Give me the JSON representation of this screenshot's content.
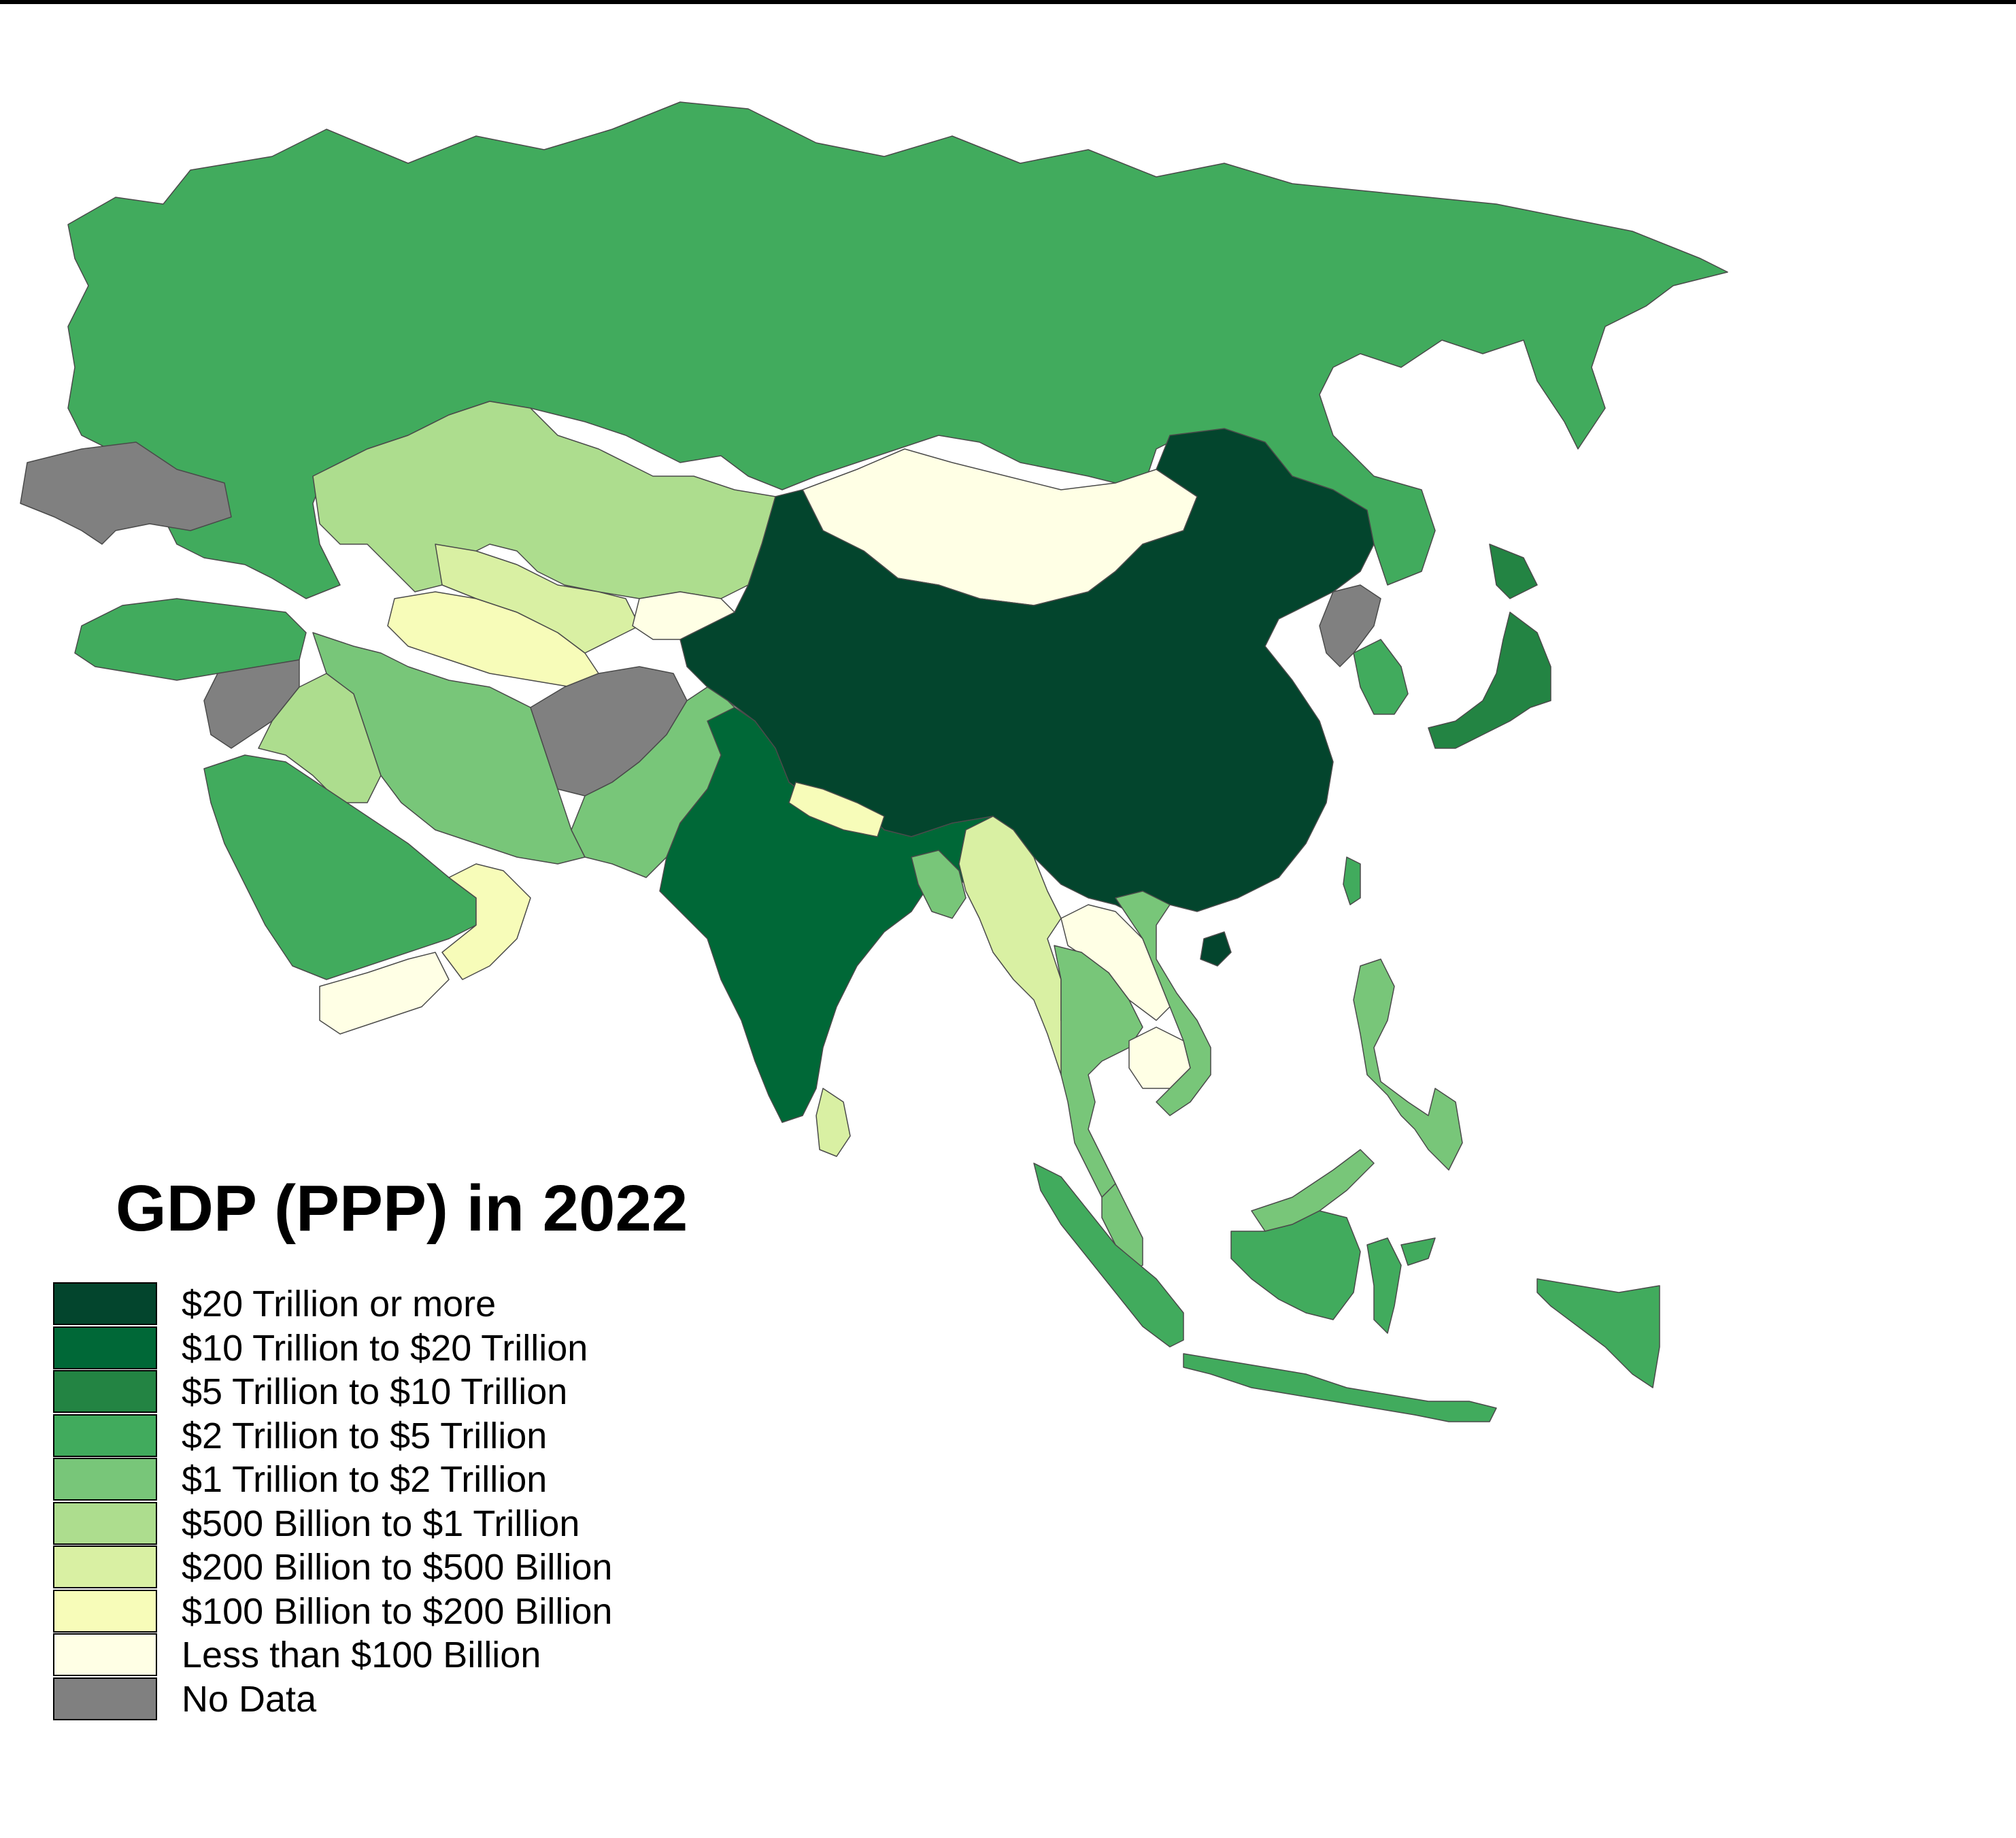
{
  "title": "GDP (PPP) in 2022",
  "legend": [
    {
      "label": "$20 Trillion or more",
      "color": "#03452d"
    },
    {
      "label": "$10 Trillion to $20 Trillion",
      "color": "#006837"
    },
    {
      "label": "$5 Trillion to $10 Trillion",
      "color": "#238443"
    },
    {
      "label": "$2 Trillion to $5 Trillion",
      "color": "#41ab5d"
    },
    {
      "label": "$1 Trillion to $2 Trillion",
      "color": "#78c679"
    },
    {
      "label": "$500 Billion to $1 Trillion",
      "color": "#addd8e"
    },
    {
      "label": "$200 Billion to $500 Billion",
      "color": "#d9f0a3"
    },
    {
      "label": "$100 Billion to $200 Billion",
      "color": "#f7fcb9"
    },
    {
      "label": "Less than $100 Billion",
      "color": "#ffffe5"
    },
    {
      "label": "No Data",
      "color": "#808080"
    }
  ],
  "regions": [
    {
      "name": "china",
      "class": "$20 Trillion or more"
    },
    {
      "name": "india",
      "class": "$10 Trillion to $20 Trillion"
    },
    {
      "name": "japan",
      "class": "$5 Trillion to $10 Trillion"
    },
    {
      "name": "russia",
      "class": "$2 Trillion to $5 Trillion"
    },
    {
      "name": "indonesia",
      "class": "$2 Trillion to $5 Trillion"
    },
    {
      "name": "saudi-arabia",
      "class": "$2 Trillion to $5 Trillion"
    },
    {
      "name": "turkey",
      "class": "$2 Trillion to $5 Trillion"
    },
    {
      "name": "south-korea",
      "class": "$2 Trillion to $5 Trillion"
    },
    {
      "name": "iran",
      "class": "$1 Trillion to $2 Trillion"
    },
    {
      "name": "pakistan",
      "class": "$1 Trillion to $2 Trillion"
    },
    {
      "name": "thailand",
      "class": "$1 Trillion to $2 Trillion"
    },
    {
      "name": "vietnam",
      "class": "$1 Trillion to $2 Trillion"
    },
    {
      "name": "bangladesh",
      "class": "$1 Trillion to $2 Trillion"
    },
    {
      "name": "malaysia",
      "class": "$1 Trillion to $2 Trillion"
    },
    {
      "name": "philippines",
      "class": "$1 Trillion to $2 Trillion"
    },
    {
      "name": "kazakhstan",
      "class": "$500 Billion to $1 Trillion"
    },
    {
      "name": "iraq",
      "class": "$500 Billion to $1 Trillion"
    },
    {
      "name": "uzbekistan",
      "class": "$200 Billion to $500 Billion"
    },
    {
      "name": "myanmar",
      "class": "$200 Billion to $500 Billion"
    },
    {
      "name": "sri-lanka",
      "class": "$200 Billion to $500 Billion"
    },
    {
      "name": "oman",
      "class": "$100 Billion to $200 Billion"
    },
    {
      "name": "nepal",
      "class": "$100 Billion to $200 Billion"
    },
    {
      "name": "turkmenistan",
      "class": "$100 Billion to $200 Billion"
    },
    {
      "name": "mongolia",
      "class": "Less than $100 Billion"
    },
    {
      "name": "yemen",
      "class": "Less than $100 Billion"
    },
    {
      "name": "laos",
      "class": "Less than $100 Billion"
    },
    {
      "name": "cambodia",
      "class": "Less than $100 Billion"
    },
    {
      "name": "kyrgyzstan",
      "class": "Less than $100 Billion"
    },
    {
      "name": "afghanistan",
      "class": "No Data"
    },
    {
      "name": "syria",
      "class": "No Data"
    },
    {
      "name": "north-korea",
      "class": "No Data"
    },
    {
      "name": "ukraine",
      "class": "No Data"
    }
  ]
}
